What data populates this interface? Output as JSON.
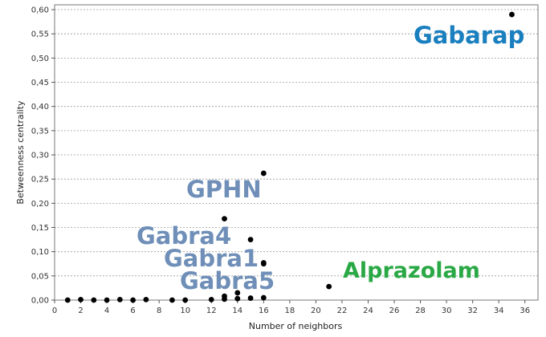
{
  "chart_data": {
    "type": "scatter",
    "xlabel": "Number of neighbors",
    "ylabel": "Betweenness centrality",
    "xlim": [
      0,
      37
    ],
    "ylim": [
      0,
      0.61
    ],
    "x_ticks": [
      0,
      2,
      4,
      6,
      8,
      10,
      12,
      14,
      16,
      18,
      20,
      22,
      24,
      26,
      28,
      30,
      32,
      34,
      36
    ],
    "x_tick_labels": [
      "0",
      "2",
      "4",
      "6",
      "8",
      "10",
      "12",
      "14",
      "16",
      "18",
      "20",
      "22",
      "24",
      "26",
      "28",
      "30",
      "32",
      "34",
      "36"
    ],
    "y_ticks": [
      0,
      0.05,
      0.1,
      0.15,
      0.2,
      0.25,
      0.3,
      0.35,
      0.4,
      0.45,
      0.5,
      0.55,
      0.6
    ],
    "y_tick_labels": [
      "0,00",
      "0,05",
      "0,10",
      "0,15",
      "0,20",
      "0,25",
      "0,30",
      "0,35",
      "0,40",
      "0,45",
      "0,50",
      "0,55",
      "0,60"
    ],
    "grid": "horizontal-dashed",
    "point_color": "#000000",
    "points": [
      {
        "x": 1,
        "y": 0.0
      },
      {
        "x": 2,
        "y": 0.001
      },
      {
        "x": 3,
        "y": 0.0
      },
      {
        "x": 4,
        "y": 0.0
      },
      {
        "x": 5,
        "y": 0.001
      },
      {
        "x": 6,
        "y": 0.0
      },
      {
        "x": 7,
        "y": 0.001
      },
      {
        "x": 9,
        "y": 0.0
      },
      {
        "x": 10,
        "y": 0.0
      },
      {
        "x": 12,
        "y": 0.001
      },
      {
        "x": 13,
        "y": 0.002
      },
      {
        "x": 13,
        "y": 0.008
      },
      {
        "x": 13,
        "y": 0.168
      },
      {
        "x": 14,
        "y": 0.003
      },
      {
        "x": 14,
        "y": 0.015
      },
      {
        "x": 15,
        "y": 0.004
      },
      {
        "x": 15,
        "y": 0.125
      },
      {
        "x": 16,
        "y": 0.005
      },
      {
        "x": 16,
        "y": 0.075
      },
      {
        "x": 16,
        "y": 0.077
      },
      {
        "x": 16,
        "y": 0.262
      },
      {
        "x": 21,
        "y": 0.028
      },
      {
        "x": 35,
        "y": 0.59
      }
    ],
    "annotations": [
      {
        "text": "Gabarap",
        "color": "#1a7fbf"
      },
      {
        "text": "GPHN",
        "color": "#6f8fb8"
      },
      {
        "text": "Gabra4",
        "color": "#6f8fb8"
      },
      {
        "text": "Gabra1",
        "color": "#6f8fb8"
      },
      {
        "text": "Gabra5",
        "color": "#6f8fb8"
      },
      {
        "text": "Alprazolam",
        "color": "#2aa845"
      }
    ]
  }
}
